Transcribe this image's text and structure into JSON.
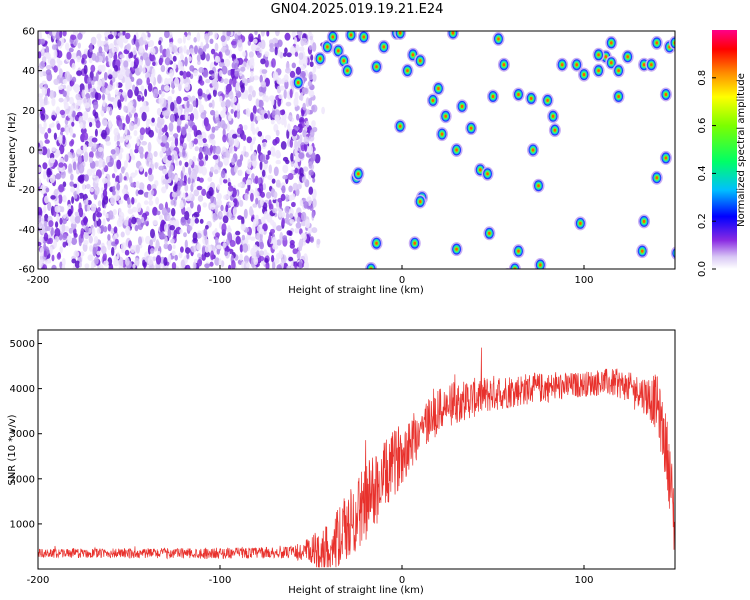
{
  "title": "GN04.2025.019.19.21.E24",
  "chart_data": [
    {
      "type": "heatmap",
      "xlabel": "Height of straight line (km)",
      "ylabel": "Frequency (Hz)",
      "xlim": [
        -200,
        150
      ],
      "ylim": [
        -60,
        60
      ],
      "xticks": [
        -200,
        -100,
        0,
        100
      ],
      "yticks": [
        -60,
        -40,
        -20,
        0,
        20,
        40,
        60
      ],
      "colorbar": {
        "label": "Normalized spectral amplitude",
        "range": [
          0,
          1
        ],
        "ticks": [
          0.0,
          0.2,
          0.4,
          0.6,
          0.8
        ]
      },
      "noise_region_x": [
        -200,
        -48
      ],
      "blobs": [
        [
          -57,
          34
        ],
        [
          -41,
          52
        ],
        [
          -38,
          57
        ],
        [
          -35,
          50
        ],
        [
          -32,
          45
        ],
        [
          -28,
          58
        ],
        [
          -30,
          40
        ],
        [
          -45,
          46
        ],
        [
          -21,
          57
        ],
        [
          -14,
          42
        ],
        [
          -10,
          52
        ],
        [
          -3,
          59
        ],
        [
          -1,
          59
        ],
        [
          6,
          48
        ],
        [
          10,
          45
        ],
        [
          3,
          40
        ],
        [
          -25,
          -14
        ],
        [
          -24,
          -12
        ],
        [
          -14,
          -47
        ],
        [
          -17,
          -60
        ],
        [
          7,
          -47
        ],
        [
          11,
          -24
        ],
        [
          28,
          59
        ],
        [
          20,
          31
        ],
        [
          17,
          25
        ],
        [
          24,
          17
        ],
        [
          33,
          22
        ],
        [
          22,
          8
        ],
        [
          38,
          11
        ],
        [
          30,
          0
        ],
        [
          43,
          -10
        ],
        [
          47,
          -12
        ],
        [
          30,
          -50
        ],
        [
          48,
          -42
        ],
        [
          53,
          56
        ],
        [
          56,
          43
        ],
        [
          50,
          27
        ],
        [
          64,
          28
        ],
        [
          71,
          26
        ],
        [
          72,
          0
        ],
        [
          75,
          -18
        ],
        [
          64,
          -51
        ],
        [
          62,
          -60
        ],
        [
          76,
          -58
        ],
        [
          58,
          -63
        ],
        [
          88,
          43
        ],
        [
          96,
          43
        ],
        [
          80,
          25
        ],
        [
          83,
          17
        ],
        [
          84,
          10
        ],
        [
          100,
          38
        ],
        [
          108,
          40
        ],
        [
          119,
          27
        ],
        [
          98,
          -37
        ],
        [
          112,
          47
        ],
        [
          108,
          48
        ],
        [
          115,
          54
        ],
        [
          115,
          44
        ],
        [
          119,
          40
        ],
        [
          124,
          47
        ],
        [
          133,
          43
        ],
        [
          137,
          43
        ],
        [
          140,
          54
        ],
        [
          147,
          52
        ],
        [
          150,
          54
        ],
        [
          145,
          28
        ],
        [
          145,
          -4
        ],
        [
          139,
          -64
        ],
        [
          133,
          -36
        ],
        [
          140,
          -14
        ],
        [
          132,
          -51
        ],
        [
          151,
          -52
        ],
        [
          -1,
          12
        ],
        [
          10,
          -26
        ]
      ]
    },
    {
      "type": "line",
      "xlabel": "Height of straight line (km)",
      "ylabel": "SNR (10 * v/v)",
      "xlim": [
        -200,
        150
      ],
      "ylim": [
        0,
        5300
      ],
      "xticks": [
        -200,
        -100,
        0,
        100
      ],
      "yticks": [
        1000,
        2000,
        3000,
        4000,
        5000
      ],
      "color": "#e8312c",
      "profile": [
        [
          -200,
          350
        ],
        [
          -100,
          350
        ],
        [
          -50,
          370
        ],
        [
          -40,
          450
        ],
        [
          -30,
          900
        ],
        [
          -20,
          1500
        ],
        [
          -10,
          2000
        ],
        [
          0,
          2600
        ],
        [
          10,
          3100
        ],
        [
          20,
          3500
        ],
        [
          30,
          3700
        ],
        [
          50,
          3900
        ],
        [
          70,
          4000
        ],
        [
          90,
          4050
        ],
        [
          110,
          4150
        ],
        [
          120,
          4100
        ],
        [
          130,
          3950
        ],
        [
          140,
          3700
        ],
        [
          146,
          2500
        ],
        [
          150,
          900
        ]
      ],
      "noise": [
        [
          -200,
          100
        ],
        [
          -60,
          130
        ],
        [
          -40,
          600
        ],
        [
          -20,
          900
        ],
        [
          0,
          700
        ],
        [
          20,
          500
        ],
        [
          60,
          380
        ],
        [
          100,
          280
        ],
        [
          130,
          350
        ],
        [
          150,
          900
        ]
      ]
    }
  ]
}
